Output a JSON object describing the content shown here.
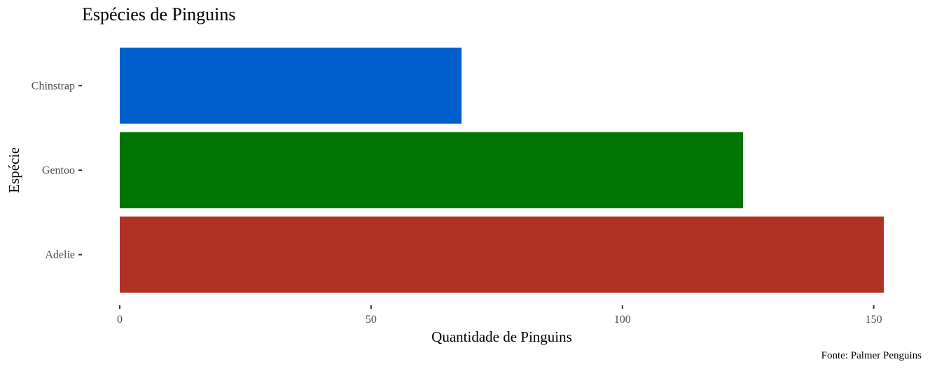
{
  "chart_data": {
    "type": "bar",
    "orientation": "horizontal",
    "title": "Espécies de Pinguins",
    "xlabel": "Quantidade de Pinguins",
    "ylabel": "Espécie",
    "caption": "Fonte: Palmer Penguins",
    "categories": [
      "Chinstrap",
      "Gentoo",
      "Adelie"
    ],
    "values": [
      68,
      124,
      152
    ],
    "colors": [
      "#005fcc",
      "#037503",
      "#b03224"
    ],
    "xlim": [
      0,
      152
    ],
    "xticks": [
      0,
      50,
      100,
      150
    ],
    "grid": false,
    "legend": "none"
  }
}
